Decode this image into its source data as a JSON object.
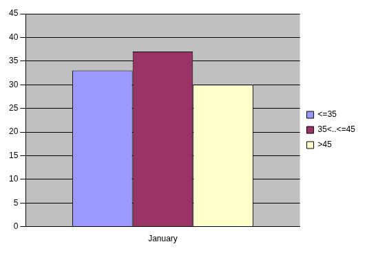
{
  "chart_data": {
    "type": "bar",
    "categories": [
      "January"
    ],
    "series": [
      {
        "name": "<=35",
        "color": "#9999ff",
        "values": [
          33
        ]
      },
      {
        "name": "35<..<=45",
        "color": "#993366",
        "values": [
          37
        ]
      },
      {
        "name": ">45",
        "color": "#ffffcc",
        "values": [
          30
        ]
      }
    ],
    "ylim": [
      0,
      45
    ],
    "yticks": [
      0,
      5,
      10,
      15,
      20,
      25,
      30,
      35,
      40,
      45
    ],
    "grid": true,
    "legend": "right"
  }
}
